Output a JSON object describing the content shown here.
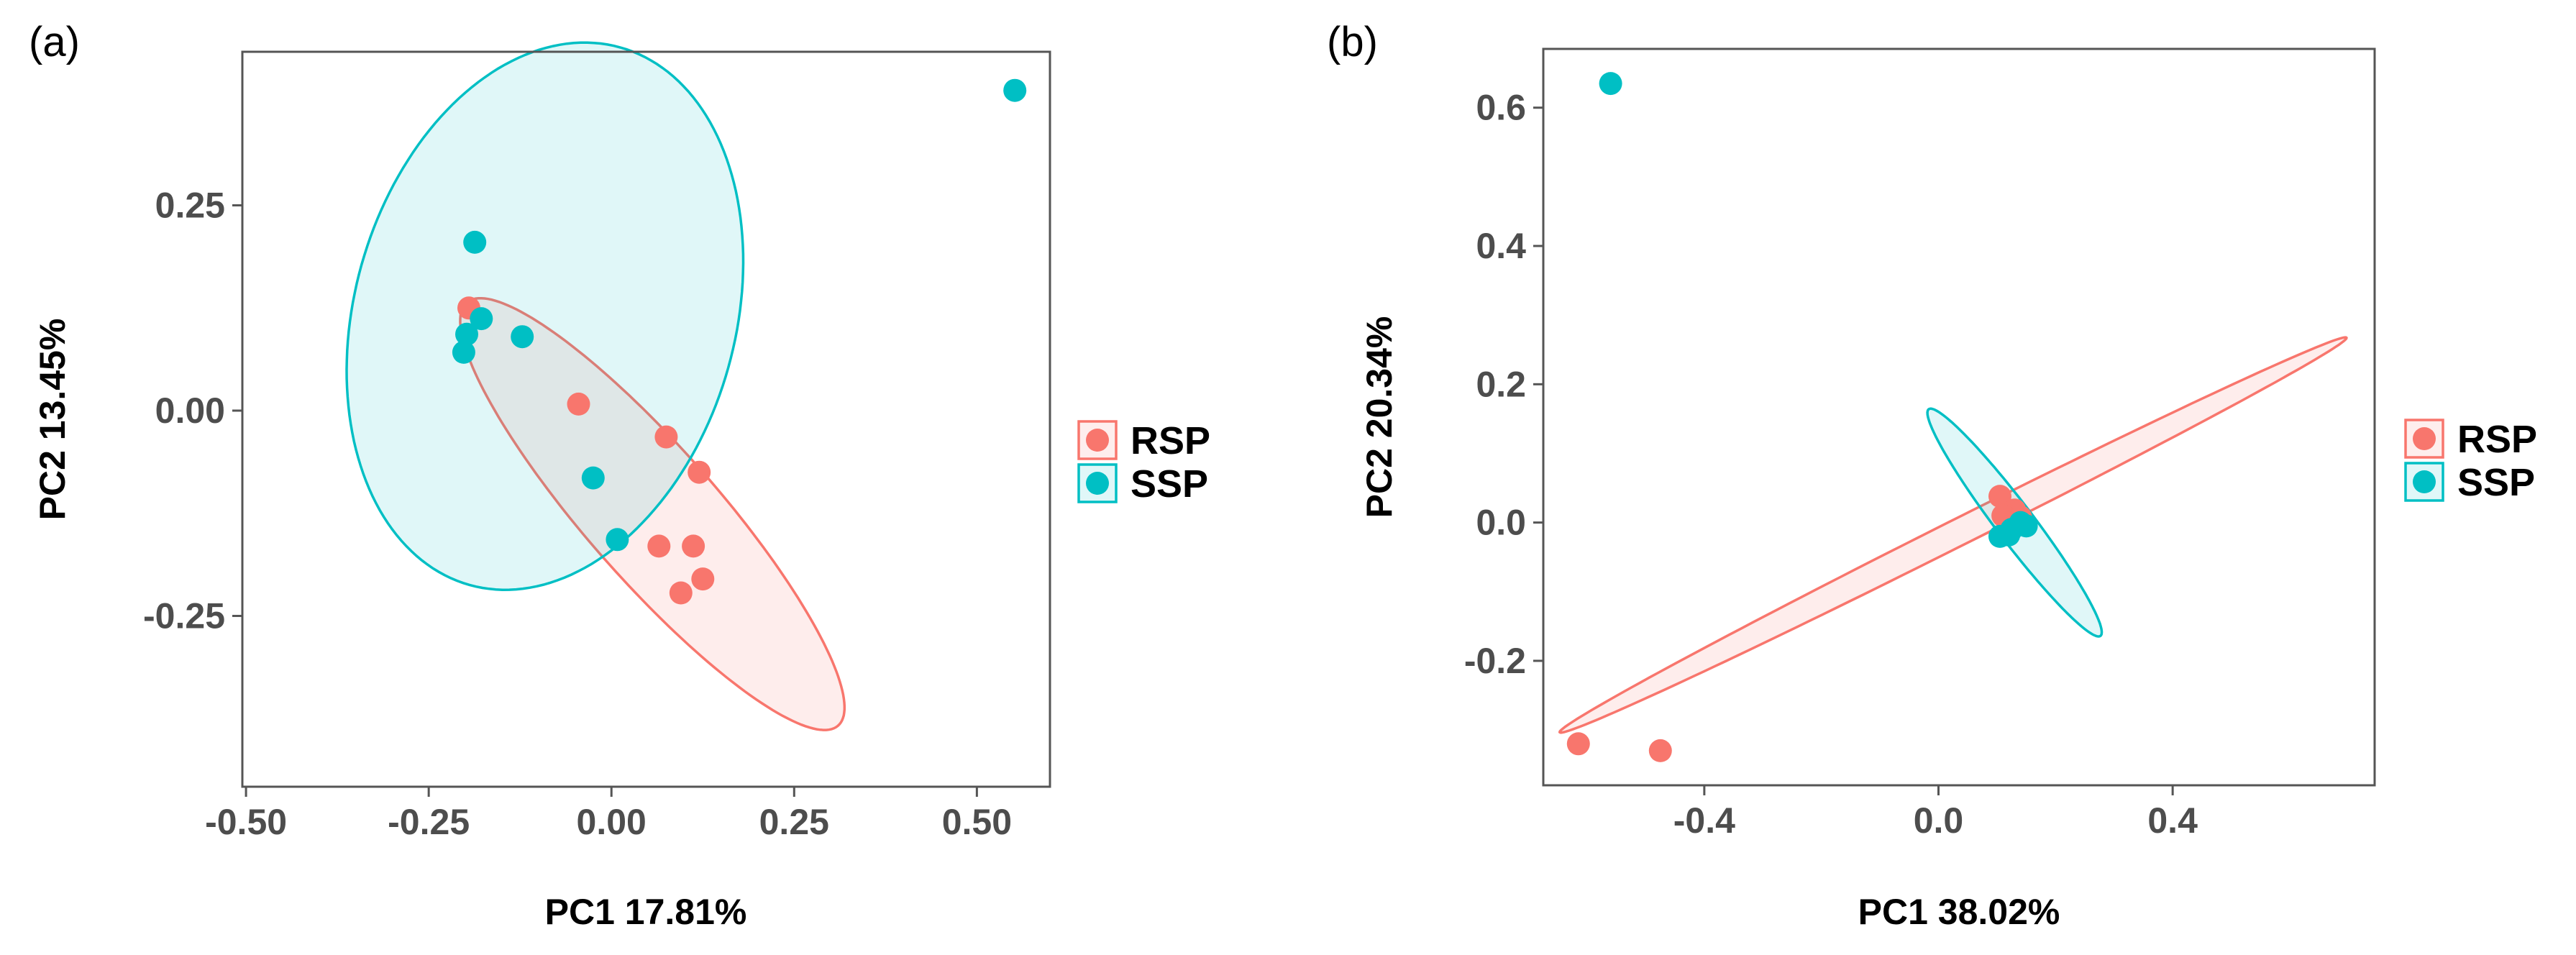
{
  "chart_data": [
    {
      "panel_label": "(a)",
      "type": "scatter",
      "xlabel": "PC1 17.81%",
      "ylabel": "PC2 13.45%",
      "xlim": [
        -0.505,
        0.6
      ],
      "ylim": [
        -0.458,
        0.437
      ],
      "xticks": [
        {
          "value": -0.5,
          "label": "-0.50"
        },
        {
          "value": -0.25,
          "label": "-0.25"
        },
        {
          "value": 0.0,
          "label": "0.00"
        },
        {
          "value": 0.25,
          "label": "0.25"
        },
        {
          "value": 0.5,
          "label": "0.50"
        }
      ],
      "yticks": [
        {
          "value": 0.25,
          "label": "0.25"
        },
        {
          "value": 0.0,
          "label": "0.00"
        },
        {
          "value": -0.25,
          "label": "-0.25"
        }
      ],
      "grid": false,
      "legend_position": "right",
      "series": [
        {
          "name": "RSP",
          "color": "#F8766D",
          "points": [
            {
              "x": -0.195,
              "y": 0.125
            },
            {
              "x": -0.045,
              "y": 0.008
            },
            {
              "x": 0.075,
              "y": -0.032
            },
            {
              "x": 0.12,
              "y": -0.075
            },
            {
              "x": 0.065,
              "y": -0.165
            },
            {
              "x": 0.112,
              "y": -0.165
            },
            {
              "x": 0.125,
              "y": -0.205
            },
            {
              "x": 0.095,
              "y": -0.222
            }
          ],
          "ellipse": {
            "cx": 0.056,
            "cy": -0.126,
            "rx": 0.362,
            "ry": 0.085,
            "angle_deg": -45
          }
        },
        {
          "name": "SSP",
          "color": "#00BFC4",
          "points": [
            {
              "x": 0.552,
              "y": 0.39
            },
            {
              "x": -0.187,
              "y": 0.205
            },
            {
              "x": -0.178,
              "y": 0.112
            },
            {
              "x": -0.198,
              "y": 0.093
            },
            {
              "x": -0.202,
              "y": 0.071
            },
            {
              "x": -0.122,
              "y": 0.09
            },
            {
              "x": -0.025,
              "y": -0.082
            },
            {
              "x": 0.008,
              "y": -0.157
            }
          ],
          "ellipse": {
            "cx": -0.091,
            "cy": 0.115,
            "rx": 0.2575,
            "ry": 0.344,
            "angle_deg": -22
          }
        }
      ]
    },
    {
      "panel_label": "(b)",
      "type": "scatter",
      "xlabel": "PC1 38.02%",
      "ylabel": "PC2 20.34%",
      "xlim": [
        -0.675,
        0.745
      ],
      "ylim": [
        -0.38,
        0.685
      ],
      "xticks": [
        {
          "value": -0.4,
          "label": "-0.4"
        },
        {
          "value": 0.0,
          "label": "0.0"
        },
        {
          "value": 0.4,
          "label": "0.4"
        }
      ],
      "yticks": [
        {
          "value": 0.6,
          "label": "0.6"
        },
        {
          "value": 0.4,
          "label": "0.4"
        },
        {
          "value": 0.2,
          "label": "0.2"
        },
        {
          "value": 0.0,
          "label": "0.0"
        },
        {
          "value": -0.2,
          "label": "-0.2"
        }
      ],
      "grid": false,
      "legend_position": "right",
      "series": [
        {
          "name": "RSP",
          "color": "#F8766D",
          "points": [
            {
              "x": -0.615,
              "y": -0.32
            },
            {
              "x": -0.475,
              "y": -0.33
            },
            {
              "x": 0.105,
              "y": 0.038
            },
            {
              "x": 0.13,
              "y": 0.018
            },
            {
              "x": 0.11,
              "y": 0.01
            },
            {
              "x": 0.14,
              "y": 0.008
            }
          ],
          "ellipse": {
            "cx": 0.025,
            "cy": -0.018,
            "rx": 0.73,
            "ry": 0.02,
            "angle_deg": 23
          }
        },
        {
          "name": "SSP",
          "color": "#00BFC4",
          "points": [
            {
              "x": -0.56,
              "y": 0.635
            },
            {
              "x": 0.105,
              "y": -0.02
            },
            {
              "x": 0.125,
              "y": -0.01
            },
            {
              "x": 0.14,
              "y": 0.0
            },
            {
              "x": 0.15,
              "y": -0.005
            },
            {
              "x": 0.12,
              "y": -0.018
            }
          ],
          "ellipse": {
            "cx": 0.13,
            "cy": 0.0,
            "rx": 0.22,
            "ry": 0.03,
            "angle_deg": -48
          }
        }
      ]
    }
  ]
}
